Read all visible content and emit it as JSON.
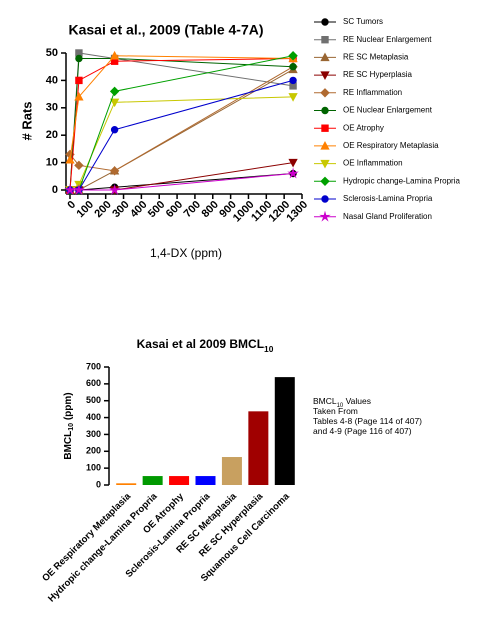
{
  "chart_data": [
    {
      "type": "line",
      "title": "Kasai et al., 2009 (Table 4-7A)",
      "ylabel": "# Rats",
      "xlabel": "1,4-DX (ppm)",
      "x": [
        0,
        50,
        250,
        1250
      ],
      "xlim": [
        0,
        1300
      ],
      "xticks": [
        0,
        100,
        200,
        300,
        400,
        500,
        600,
        700,
        800,
        900,
        1000,
        1100,
        1200,
        1300
      ],
      "ylim": [
        0,
        50
      ],
      "yticks": [
        0,
        10,
        20,
        30,
        40,
        50
      ],
      "series": [
        {
          "name": "SC Tumors",
          "color": "#000000",
          "marker": "circle",
          "values": [
            0,
            0,
            1,
            6
          ]
        },
        {
          "name": "RE Nuclear Enlargement",
          "color": "#707070",
          "marker": "square",
          "values": [
            0,
            50,
            48,
            38
          ]
        },
        {
          "name": "RE SC Metaplasia",
          "color": "#996633",
          "marker": "triangle-up",
          "values": [
            0,
            0,
            7,
            44
          ]
        },
        {
          "name": "RE SC Hyperplasia",
          "color": "#8b0000",
          "marker": "triangle-down",
          "values": [
            0,
            0,
            0,
            10
          ]
        },
        {
          "name": "RE Inflammation",
          "color": "#b06a30",
          "marker": "diamond",
          "values": [
            13,
            9,
            7,
            45
          ]
        },
        {
          "name": "OE Nuclear Enlargement",
          "color": "#006400",
          "marker": "circle",
          "values": [
            0,
            48,
            48,
            45
          ]
        },
        {
          "name": "OE Atrophy",
          "color": "#ff0000",
          "marker": "square",
          "values": [
            0,
            40,
            47,
            48
          ]
        },
        {
          "name": "OE Respiratory Metaplasia",
          "color": "#ff8000",
          "marker": "triangle-up",
          "values": [
            11,
            34,
            49,
            48
          ]
        },
        {
          "name": "OE Inflammation",
          "color": "#c8c800",
          "marker": "triangle-down",
          "values": [
            0,
            2,
            32,
            34
          ]
        },
        {
          "name": "Hydropic change-Lamina Propria",
          "color": "#00a000",
          "marker": "diamond",
          "values": [
            0,
            0,
            36,
            49
          ]
        },
        {
          "name": "Sclerosis-Lamina Propria",
          "color": "#0000cc",
          "marker": "circle",
          "values": [
            0,
            0,
            22,
            40
          ]
        },
        {
          "name": "Nasal Gland Proliferation",
          "color": "#cc00cc",
          "marker": "star",
          "values": [
            0,
            0,
            0,
            6
          ]
        }
      ]
    },
    {
      "type": "bar",
      "title": [
        "Kasai et al 2009 BMCL",
        "10"
      ],
      "ylabel": [
        "BMCL",
        "10",
        " (ppm)"
      ],
      "categories": [
        "OE Respiratory Metaplasia",
        "Hydropic change-Lamina Propria",
        "OE Atrophy",
        "Sclerosis-Lamina Propria",
        "RE SC Metaplasia",
        "RE SC Hyperplasia",
        "Squamous Cell Carcinoma"
      ],
      "values": [
        10,
        53,
        53,
        53,
        166,
        437,
        640
      ],
      "colors": [
        "#ff8000",
        "#009900",
        "#ff0000",
        "#0000ff",
        "#c8a060",
        "#a00000",
        "#000000"
      ],
      "ylim": [
        0,
        700
      ],
      "yticks": [
        0,
        100,
        200,
        300,
        400,
        500,
        600,
        700
      ],
      "annotation": [
        [
          "BMCL",
          "10",
          " Values"
        ],
        [
          "Taken From"
        ],
        [
          "Tables 4-8 (Page 114 of 407)"
        ],
        [
          "and 4-9 (Page 116 of 407)"
        ]
      ]
    }
  ]
}
